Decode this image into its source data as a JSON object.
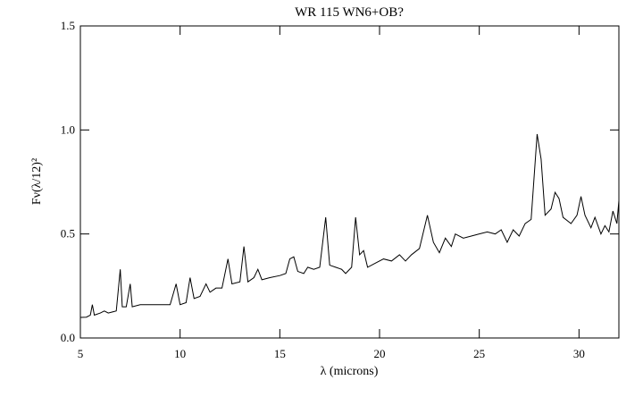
{
  "chart_data": {
    "type": "line",
    "title": "WR 115 WN6+OB?",
    "x_label": "λ (microns)",
    "y_label": "Fν(λ/12)²",
    "x": [
      5.0,
      5.3,
      5.5,
      5.6,
      5.7,
      6.0,
      6.2,
      6.4,
      6.8,
      7.0,
      7.1,
      7.3,
      7.5,
      7.6,
      8.0,
      8.5,
      9.0,
      9.5,
      9.8,
      10.0,
      10.3,
      10.5,
      10.7,
      11.0,
      11.3,
      11.5,
      11.8,
      12.1,
      12.4,
      12.6,
      13.0,
      13.2,
      13.4,
      13.7,
      13.9,
      14.1,
      14.5,
      15.0,
      15.3,
      15.5,
      15.7,
      15.9,
      16.2,
      16.4,
      16.7,
      17.0,
      17.3,
      17.5,
      17.8,
      18.1,
      18.3,
      18.6,
      18.8,
      19.0,
      19.2,
      19.4,
      19.8,
      20.2,
      20.6,
      21.0,
      21.3,
      21.6,
      22.0,
      22.4,
      22.7,
      23.0,
      23.3,
      23.6,
      23.8,
      24.2,
      24.6,
      25.0,
      25.4,
      25.8,
      26.1,
      26.4,
      26.7,
      27.0,
      27.3,
      27.6,
      27.9,
      28.1,
      28.3,
      28.6,
      28.8,
      29.0,
      29.2,
      29.6,
      29.9,
      30.1,
      30.3,
      30.6,
      30.8,
      31.1,
      31.3,
      31.5,
      31.7,
      31.9,
      32.0
    ],
    "series": [
      {
        "name": "WR 115",
        "color": "#000000",
        "values": [
          0.099,
          0.1,
          0.11,
          0.16,
          0.11,
          0.12,
          0.13,
          0.12,
          0.13,
          0.33,
          0.15,
          0.15,
          0.26,
          0.15,
          0.16,
          0.16,
          0.16,
          0.16,
          0.26,
          0.16,
          0.17,
          0.29,
          0.19,
          0.2,
          0.26,
          0.22,
          0.24,
          0.24,
          0.38,
          0.26,
          0.27,
          0.44,
          0.27,
          0.29,
          0.33,
          0.28,
          0.29,
          0.3,
          0.31,
          0.38,
          0.39,
          0.32,
          0.31,
          0.34,
          0.33,
          0.34,
          0.58,
          0.35,
          0.34,
          0.33,
          0.31,
          0.34,
          0.58,
          0.4,
          0.42,
          0.34,
          0.36,
          0.38,
          0.37,
          0.4,
          0.37,
          0.4,
          0.43,
          0.59,
          0.46,
          0.41,
          0.48,
          0.44,
          0.5,
          0.48,
          0.49,
          0.5,
          0.51,
          0.5,
          0.52,
          0.46,
          0.52,
          0.49,
          0.55,
          0.57,
          0.98,
          0.86,
          0.59,
          0.62,
          0.7,
          0.67,
          0.58,
          0.55,
          0.59,
          0.68,
          0.59,
          0.53,
          0.58,
          0.5,
          0.54,
          0.51,
          0.61,
          0.55,
          0.66
        ]
      }
    ],
    "xlim": [
      5,
      32
    ],
    "ylim": [
      0,
      1.5
    ],
    "xticks": [
      5,
      10,
      15,
      20,
      25,
      30
    ],
    "yticks": [
      {
        "value": 0,
        "label": "0.0"
      },
      0.5,
      {
        "value": 1,
        "label": "1.0"
      },
      {
        "value": 1.5,
        "label": "1.5"
      }
    ]
  }
}
